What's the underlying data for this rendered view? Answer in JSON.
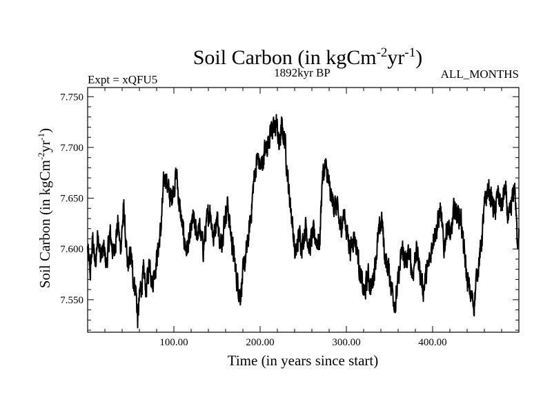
{
  "chart_data": {
    "type": "line",
    "title": {
      "base": "Soil Carbon (in kgCm",
      "sup1": "-2",
      "mid": "yr",
      "sup2": "-1",
      "end": ")"
    },
    "subtitle_left": "Expt = xQFU5",
    "subtitle_center": "1892kyr BP",
    "subtitle_right": "ALL_MONTHS",
    "xlabel": "Time (in years since start)",
    "ylabel": {
      "base": "Soil Carbon (in kgCm",
      "sup1": "-2",
      "mid": "yr",
      "sup2": "-1",
      "end": ")"
    },
    "xlim": [
      0,
      500
    ],
    "ylim": [
      7.518,
      7.759
    ],
    "xticks": [
      100,
      200,
      300,
      400
    ],
    "xtick_labels": [
      "100.00",
      "200.00",
      "300.00",
      "400.00"
    ],
    "yticks": [
      7.55,
      7.6,
      7.65,
      7.7,
      7.75
    ],
    "ytick_labels": [
      "7.550",
      "7.600",
      "7.650",
      "7.700",
      "7.750"
    ],
    "grid": false,
    "line_color": "#000000",
    "series": [
      {
        "x": [
          0,
          3,
          6,
          9,
          12,
          15,
          18,
          22,
          26,
          30,
          35,
          38,
          42,
          46,
          50,
          53,
          56,
          58,
          61,
          65,
          68,
          72,
          75,
          78,
          82,
          85,
          88,
          90,
          93,
          96,
          100,
          103,
          106,
          110,
          114,
          118,
          122,
          126,
          130,
          134,
          138,
          142,
          146,
          150,
          154,
          158,
          162,
          166,
          170,
          173,
          177,
          181,
          185,
          189,
          193,
          197,
          201,
          205,
          209,
          213,
          216,
          219,
          222,
          225,
          229,
          233,
          237,
          241,
          245,
          249,
          253,
          257,
          261,
          265,
          269,
          272,
          275,
          278,
          281,
          285,
          289,
          293,
          297,
          301,
          305,
          309,
          313,
          317,
          321,
          325,
          329,
          333,
          337,
          341,
          345,
          349,
          353,
          357,
          361,
          365,
          369,
          373,
          377,
          381,
          385,
          389,
          393,
          397,
          401,
          405,
          409,
          413,
          417,
          421,
          425,
          429,
          433,
          436,
          440,
          444,
          448,
          452,
          456,
          460,
          464,
          468,
          472,
          476,
          480,
          484,
          488,
          492,
          495,
          498,
          500
        ],
        "y": [
          7.6,
          7.575,
          7.61,
          7.58,
          7.62,
          7.59,
          7.6,
          7.585,
          7.615,
          7.595,
          7.625,
          7.6,
          7.64,
          7.58,
          7.595,
          7.57,
          7.56,
          7.53,
          7.56,
          7.575,
          7.56,
          7.59,
          7.565,
          7.58,
          7.6,
          7.62,
          7.66,
          7.675,
          7.66,
          7.65,
          7.66,
          7.675,
          7.645,
          7.62,
          7.6,
          7.605,
          7.63,
          7.615,
          7.62,
          7.6,
          7.625,
          7.64,
          7.61,
          7.635,
          7.6,
          7.625,
          7.645,
          7.615,
          7.59,
          7.57,
          7.555,
          7.58,
          7.6,
          7.63,
          7.67,
          7.69,
          7.68,
          7.695,
          7.705,
          7.72,
          7.715,
          7.725,
          7.7,
          7.72,
          7.705,
          7.66,
          7.63,
          7.59,
          7.615,
          7.605,
          7.625,
          7.6,
          7.615,
          7.61,
          7.605,
          7.67,
          7.68,
          7.675,
          7.655,
          7.645,
          7.64,
          7.62,
          7.635,
          7.615,
          7.6,
          7.615,
          7.595,
          7.57,
          7.555,
          7.575,
          7.56,
          7.585,
          7.61,
          7.63,
          7.59,
          7.58,
          7.56,
          7.545,
          7.575,
          7.6,
          7.585,
          7.595,
          7.575,
          7.6,
          7.58,
          7.56,
          7.575,
          7.59,
          7.615,
          7.62,
          7.64,
          7.6,
          7.625,
          7.61,
          7.64,
          7.635,
          7.63,
          7.6,
          7.57,
          7.555,
          7.545,
          7.58,
          7.6,
          7.64,
          7.66,
          7.65,
          7.635,
          7.655,
          7.64,
          7.66,
          7.625,
          7.645,
          7.665,
          7.61,
          7.62
        ]
      }
    ]
  }
}
